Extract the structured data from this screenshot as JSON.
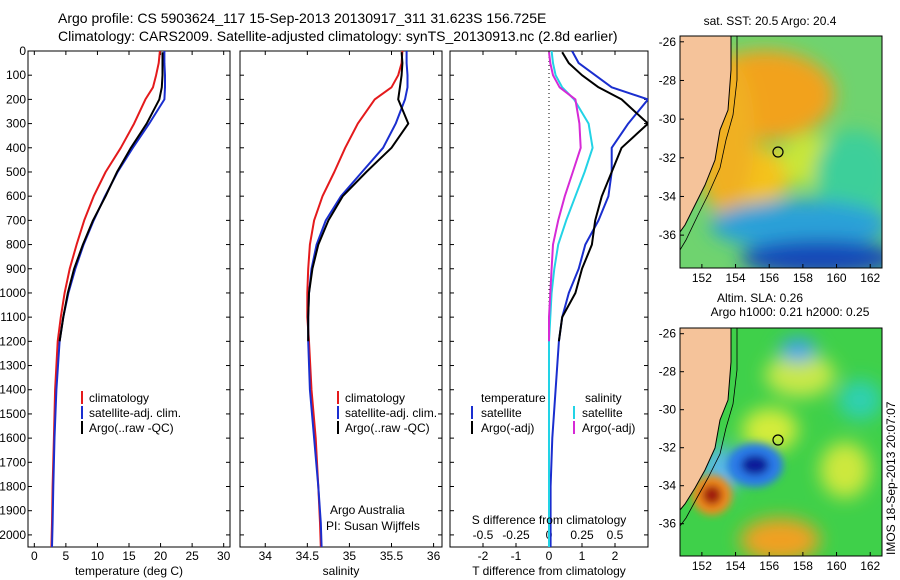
{
  "header": {
    "line1": "Argo profile: CS 5903624_117 15-Sep-2013 20130917_311 31.623S 156.725E",
    "line2": "Climatology: CARS2009. Satellite-adjusted climatology: synTS_20130913.nc (2.8d earlier)"
  },
  "side_caption": "IMOS 18-Sep-2013 20:07:07",
  "colors": {
    "climatology": "#e41a1c",
    "satellite": "#1a2ecf",
    "argo": "#000000",
    "salinity_satellite": "#22d3e6",
    "salinity_argo": "#d62ad6",
    "land": "#f5c39a"
  },
  "chart_data": [
    {
      "type": "line",
      "panel": "temperature",
      "xlabel": "temperature (deg C)",
      "ylabel": "",
      "xlim": [
        -1,
        31
      ],
      "ylim": [
        2050,
        0
      ],
      "xticks": [
        0,
        5,
        10,
        15,
        20,
        25,
        30
      ],
      "yticks": [
        0,
        100,
        200,
        300,
        400,
        500,
        600,
        700,
        800,
        900,
        1000,
        1100,
        1200,
        1300,
        1400,
        1500,
        1600,
        1700,
        1800,
        1900,
        2000
      ],
      "legend": [
        "climatology",
        "satellite-adj. clim.",
        "Argo(..raw -QC)"
      ],
      "series": [
        {
          "name": "climatology",
          "color": "#e41a1c",
          "x": [
            19.9,
            19.7,
            19.3,
            18.8,
            17.6,
            15.8,
            13.7,
            11.3,
            9.4,
            7.9,
            6.7,
            5.6,
            4.8,
            4.2,
            3.7,
            3.3,
            3.1,
            2.9,
            2.8,
            2.7
          ],
          "y": [
            0,
            50,
            100,
            150,
            200,
            300,
            400,
            500,
            600,
            700,
            800,
            900,
            1000,
            1100,
            1200,
            1400,
            1600,
            1800,
            1950,
            2050
          ]
        },
        {
          "name": "satellite-adj. clim.",
          "color": "#1a2ecf",
          "x": [
            20.6,
            20.6,
            20.7,
            20.7,
            20.6,
            18.2,
            15.6,
            13.2,
            11.2,
            9.4,
            7.8,
            6.5,
            5.4,
            4.6,
            4.0,
            3.5,
            3.2,
            3.0,
            2.9,
            2.8
          ],
          "y": [
            0,
            50,
            100,
            150,
            200,
            300,
            400,
            500,
            600,
            700,
            800,
            900,
            1000,
            1100,
            1200,
            1400,
            1600,
            1800,
            1950,
            2050
          ]
        },
        {
          "name": "Argo(..raw -QC)",
          "color": "#000000",
          "x": [
            20.3,
            20.3,
            20.3,
            20.2,
            19.8,
            17.8,
            15.3,
            13.1,
            11.3,
            9.3,
            7.7,
            6.3,
            5.3,
            4.6,
            4.0
          ],
          "y": [
            5,
            50,
            100,
            150,
            200,
            300,
            400,
            500,
            600,
            700,
            800,
            900,
            1000,
            1100,
            1200
          ]
        }
      ]
    },
    {
      "type": "line",
      "panel": "salinity",
      "xlabel": "salinity",
      "ylabel": "",
      "xlim": [
        33.7,
        36.1
      ],
      "ylim": [
        2050,
        0
      ],
      "xticks": [
        34,
        34.5,
        35,
        35.5,
        36
      ],
      "legend": [
        "climatology",
        "satellite-adj. clim.",
        "Argo(..raw -QC)"
      ],
      "annotation": [
        "Argo Australia",
        "PI: Susan Wijffels"
      ],
      "series": [
        {
          "name": "climatology",
          "color": "#e41a1c",
          "x": [
            35.63,
            35.62,
            35.58,
            35.5,
            35.3,
            35.1,
            34.95,
            34.82,
            34.68,
            34.58,
            34.53,
            34.51,
            34.5,
            34.5,
            34.52,
            34.55,
            34.6,
            34.63,
            34.65,
            34.66
          ],
          "y": [
            0,
            50,
            100,
            150,
            200,
            300,
            400,
            500,
            600,
            700,
            800,
            900,
            1000,
            1100,
            1200,
            1400,
            1600,
            1800,
            1950,
            2050
          ]
        },
        {
          "name": "satellite-adj. clim.",
          "color": "#1a2ecf",
          "x": [
            35.68,
            35.68,
            35.69,
            35.69,
            35.66,
            35.55,
            35.4,
            35.15,
            34.9,
            34.72,
            34.61,
            34.55,
            34.52,
            34.51,
            34.51,
            34.53,
            34.58,
            34.63,
            34.66,
            34.67
          ],
          "y": [
            0,
            50,
            100,
            150,
            200,
            300,
            400,
            500,
            600,
            700,
            800,
            900,
            1000,
            1100,
            1200,
            1400,
            1600,
            1800,
            1950,
            2050
          ]
        },
        {
          "name": "Argo(..raw -QC)",
          "color": "#000000",
          "x": [
            35.62,
            35.63,
            35.62,
            35.6,
            35.58,
            35.7,
            35.5,
            35.2,
            34.92,
            34.75,
            34.63,
            34.56,
            34.52,
            34.51,
            34.51
          ],
          "y": [
            5,
            50,
            100,
            150,
            200,
            300,
            400,
            500,
            600,
            700,
            800,
            900,
            1000,
            1100,
            1200
          ]
        }
      ]
    },
    {
      "type": "line",
      "panel": "difference",
      "xlabel": "T difference from climatology",
      "xlabel_top": "S difference from climatology",
      "ylabel": "",
      "xlim": [
        -3,
        3
      ],
      "ylim": [
        2050,
        0
      ],
      "xticks": [
        -2,
        -1,
        0,
        1,
        2
      ],
      "xticks_top": [
        "-0.5",
        "-0.25",
        "0",
        "0.25",
        "0.5"
      ],
      "legend_headers": [
        "temperature",
        "salinity"
      ],
      "legend": [
        "satellite",
        "Argo(-adj)",
        "satellite",
        "Argo(-adj)"
      ],
      "series": [
        {
          "name": "satellite",
          "group": "temperature",
          "color": "#1a2ecf",
          "x": [
            0.7,
            0.9,
            1.4,
            1.9,
            3.0,
            2.4,
            1.9,
            1.9,
            1.8,
            1.5,
            1.1,
            0.9,
            0.6,
            0.4,
            0.3,
            0.2,
            0.1,
            0.05,
            0.05,
            0.05
          ],
          "y": [
            0,
            50,
            100,
            150,
            200,
            300,
            400,
            500,
            600,
            700,
            800,
            900,
            1000,
            1100,
            1200,
            1400,
            1600,
            1800,
            1950,
            2050
          ]
        },
        {
          "name": "Argo(-adj)",
          "group": "temperature",
          "color": "#000000",
          "x": [
            0.4,
            0.6,
            1.0,
            1.5,
            2.2,
            3.0,
            2.2,
            1.9,
            1.6,
            1.4,
            1.3,
            1.0,
            0.8,
            0.4,
            0.3
          ],
          "y": [
            5,
            50,
            100,
            150,
            200,
            300,
            400,
            500,
            600,
            700,
            800,
            900,
            1000,
            1100,
            1200
          ]
        },
        {
          "name": "satellite",
          "group": "salinity",
          "color": "#22d3e6",
          "x": [
            0.02,
            0.03,
            0.05,
            0.1,
            0.19,
            0.3,
            0.33,
            0.27,
            0.2,
            0.13,
            0.07,
            0.04,
            0.02,
            0.01,
            0.0,
            0.0,
            0.0,
            0.0,
            0.0
          ],
          "y": [
            0,
            50,
            100,
            150,
            200,
            300,
            400,
            500,
            600,
            700,
            800,
            900,
            1000,
            1100,
            1200,
            1400,
            1600,
            1800,
            2050
          ]
        },
        {
          "name": "Argo(-adj)",
          "group": "salinity",
          "color": "#d62ad6",
          "x": [
            0.0,
            0.01,
            0.03,
            0.08,
            0.2,
            0.23,
            0.24,
            0.18,
            0.12,
            0.07,
            0.03,
            0.02,
            0.01,
            0.0,
            0.0
          ],
          "y": [
            5,
            50,
            100,
            150,
            200,
            300,
            400,
            500,
            600,
            700,
            800,
            900,
            1000,
            1100,
            1200
          ]
        }
      ]
    },
    {
      "type": "heatmap",
      "panel": "sst_map",
      "title": "sat. SST: 20.5 Argo: 20.4",
      "xlim": [
        150.7,
        162.7
      ],
      "ylim": [
        -37.7,
        -25.7
      ],
      "xticks": [
        152,
        154,
        156,
        158,
        160,
        162
      ],
      "yticks": [
        -26,
        -28,
        -30,
        -32,
        -34,
        -36
      ],
      "marker": {
        "lon": 156.725,
        "lat": -31.623
      }
    },
    {
      "type": "heatmap",
      "panel": "sla_map",
      "title": "Altim. SLA: 0.26",
      "subtitle": "Argo h1000: 0.21 h2000: 0.25",
      "xlim": [
        150.7,
        162.7
      ],
      "ylim": [
        -37.7,
        -25.7
      ],
      "xticks": [
        152,
        154,
        156,
        158,
        160,
        162
      ],
      "yticks": [
        -26,
        -28,
        -30,
        -32,
        -34,
        -36
      ],
      "marker": {
        "lon": 156.725,
        "lat": -31.623
      }
    }
  ]
}
